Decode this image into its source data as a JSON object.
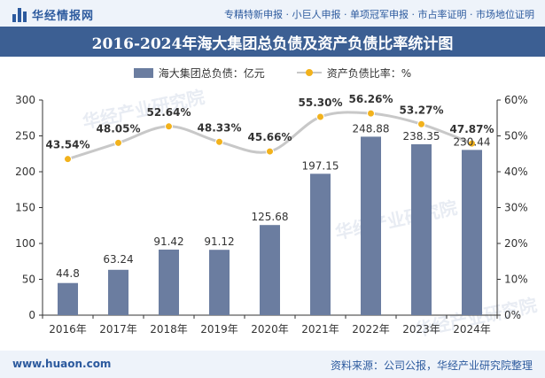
{
  "header": {
    "brand": "华经情报网",
    "tagline": "专精特新申报 · 小巨人申报 · 单项冠军申报 · 市占率证明 · 市场地位证明"
  },
  "footer": {
    "website": "www.huaon.com",
    "source": "资料来源：公司公报，华经产业研究院整理"
  },
  "colors": {
    "bar": "#6b7da0",
    "line": "#c8c8c8",
    "marker": "#f2b21c",
    "title_bg": "#3c5f93",
    "brand_text": "#2c5a9e"
  },
  "watermark": "华经产业研究院",
  "chart_data": {
    "type": "bar",
    "title": "2016-2024年海大集团总负债及资产负债比率统计图",
    "categories": [
      "2016年",
      "2017年",
      "2018年",
      "2019年",
      "2020年",
      "2021年",
      "2022年",
      "2023年",
      "2024年"
    ],
    "series": [
      {
        "name": "海大集团总负债：亿元",
        "type": "bar",
        "axis": "left",
        "values": [
          44.8,
          63.24,
          91.42,
          91.12,
          125.68,
          197.15,
          248.88,
          238.35,
          230.44
        ],
        "labels": [
          "44.8",
          "63.24",
          "91.42",
          "91.12",
          "125.68",
          "197.15",
          "248.88",
          "238.35",
          "230.44"
        ]
      },
      {
        "name": "资产负债比率：%",
        "type": "line",
        "axis": "right",
        "smooth": true,
        "values": [
          43.54,
          48.05,
          52.64,
          48.33,
          45.66,
          55.3,
          56.26,
          53.27,
          47.87
        ],
        "labels": [
          "43.54%",
          "48.05%",
          "52.64%",
          "48.33%",
          "45.66%",
          "55.30%",
          "56.26%",
          "53.27%",
          "47.87%"
        ]
      }
    ],
    "y_left": {
      "min": 0,
      "max": 300,
      "ticks": [
        "0",
        "50",
        "100",
        "150",
        "200",
        "250",
        "300"
      ]
    },
    "y_right": {
      "min": 0,
      "max": 60,
      "ticks": [
        "0%",
        "10%",
        "20%",
        "30%",
        "40%",
        "50%",
        "60%"
      ]
    },
    "grid": false,
    "legend_position": "top"
  }
}
